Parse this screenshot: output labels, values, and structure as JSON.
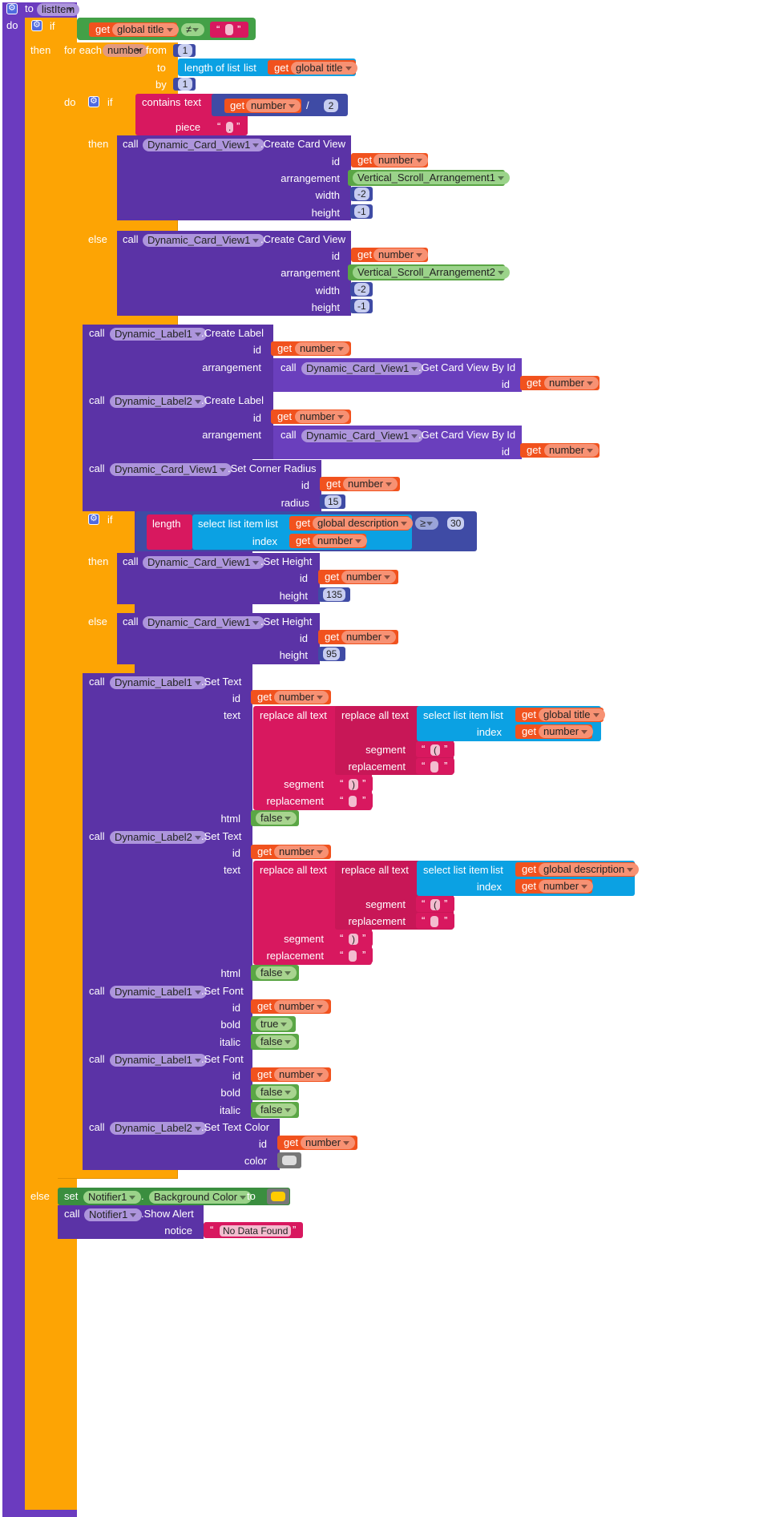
{
  "proc": {
    "to_kw": "to",
    "name": "listItem",
    "do_kw": "do"
  },
  "kw": {
    "if": "if",
    "then": "then",
    "else": "else",
    "do": "do",
    "call": "call",
    "get": "get",
    "set": "set",
    "for_each": "for each",
    "from": "from",
    "to": "to",
    "by": "by",
    "length_of_list": "length of list",
    "list": "list",
    "contains_text": "contains",
    "text": "text",
    "piece": "piece",
    "id": "id",
    "arrangement": "arrangement",
    "width": "width",
    "height": "height",
    "radius": "radius",
    "length": "length",
    "select_list_item": "select list item",
    "index": "index",
    "replace_all_text": "replace all text",
    "segment": "segment",
    "replacement": "replacement",
    "html": "html",
    "bold": "bold",
    "italic": "italic",
    "color": "color",
    "notice": "notice",
    "dot": ".",
    "neq": "≠",
    "gte": "≥",
    "divide": "/",
    "quote_l": "“",
    "quote_r": "”"
  },
  "vars": {
    "global_title": "global title",
    "global_description": "global description",
    "number": "number"
  },
  "components": {
    "card": "Dynamic_Card_View1",
    "label1": "Dynamic_Label1",
    "label2": "Dynamic_Label2",
    "notifier": "Notifier1",
    "vsa1": "Vertical_Scroll_Arrangement1",
    "vsa2": "Vertical_Scroll_Arrangement2"
  },
  "methods": {
    "create_card": ".Create Card View",
    "create_label": ".Create Label",
    "get_card_by_id": ".Get Card View By Id",
    "set_corner_radius": ".Set Corner Radius",
    "set_height": ".Set Height",
    "set_text": ".Set Text",
    "set_font": ".Set Font",
    "set_text_color": ".Set Text Color",
    "show_alert": ".Show Alert",
    "background_color": "Background Color"
  },
  "values": {
    "one": "1",
    "two": "2",
    "neg2": "-2",
    "neg1": "-1",
    "radius": "15",
    "thirty": "30",
    "h135": "135",
    "h95": "95",
    "open_paren": "(",
    "close_paren": ")",
    "false": "false",
    "true": "true",
    "no_data": "No Data Found"
  },
  "colors": {
    "procedure": "#5b33a6",
    "control": "#fda404",
    "text": "#d8185f",
    "variable": "#f1521e",
    "list": "#0ba1e3",
    "math": "#3f4ba5",
    "notifier_bg": "#ffcc00",
    "text_color": "#dddddd"
  }
}
